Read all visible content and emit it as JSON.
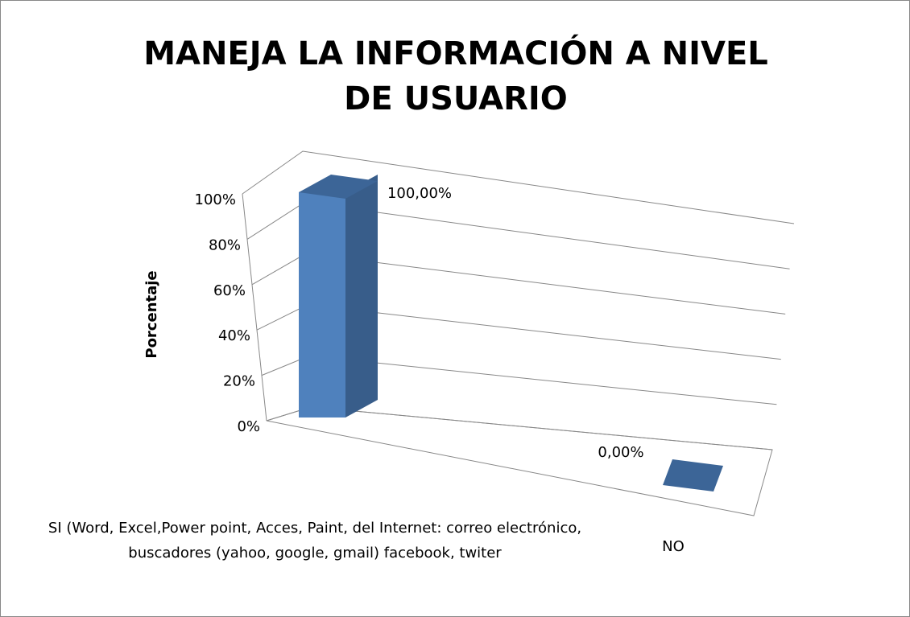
{
  "chart_data": {
    "type": "bar3d",
    "title": "MANEJA LA INFORMACIÓN A NIVEL DE USUARIO",
    "y_label": "Porcentaje",
    "categories": [
      "SI (Word, Excel,Power point, Acces, Paint, del Internet: correo electrónico, buscadores (yahoo, google, gmail) facebook, twiter",
      "NO"
    ],
    "values": [
      100,
      0
    ],
    "value_labels": [
      "100,00%",
      "0,00%"
    ],
    "color": "#4f81bd",
    "ylim": [
      0,
      100
    ],
    "yticks": [
      {
        "value": 0,
        "label": "0%"
      },
      {
        "value": 20,
        "label": "20%"
      },
      {
        "value": 40,
        "label": "40%"
      },
      {
        "value": 60,
        "label": "60%"
      },
      {
        "value": 80,
        "label": "80%"
      },
      {
        "value": 100,
        "label": "100%"
      }
    ],
    "grid": true
  }
}
